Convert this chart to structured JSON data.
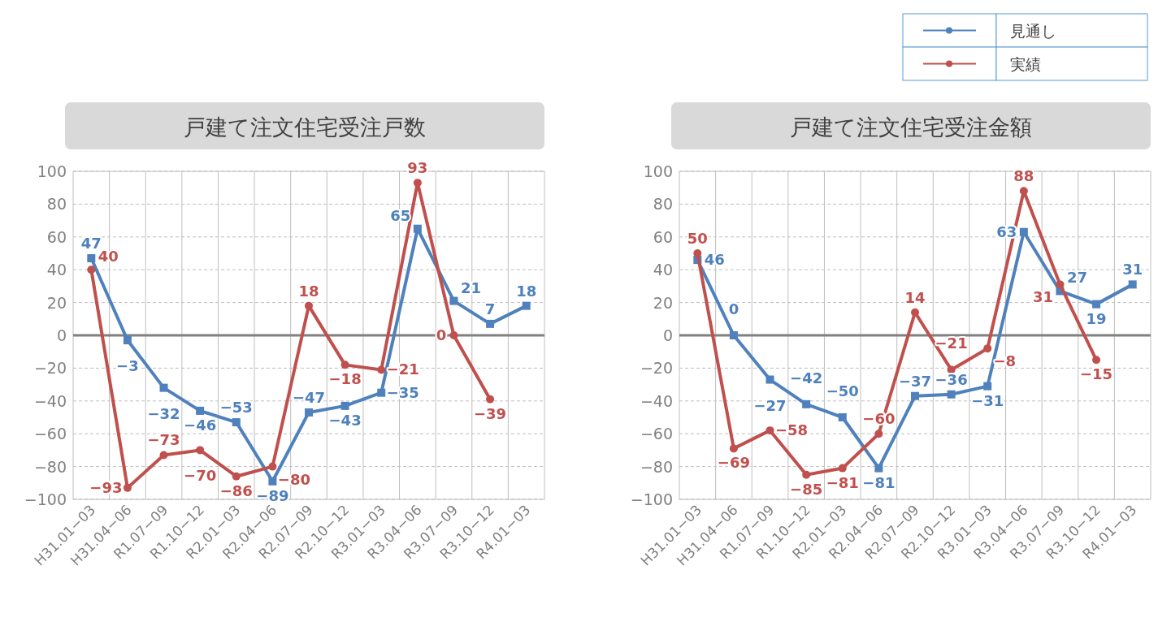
{
  "chart_data": [
    {
      "type": "line",
      "title": "戸建て注文住宅受注戸数",
      "categories": [
        "H31.01−03",
        "H31.04−06",
        "R1.07−09",
        "R1.10−12",
        "R2.01−03",
        "R2.04−06",
        "R2.07−09",
        "R2.10−12",
        "R3.01−03",
        "R3.04−06",
        "R3.07−09",
        "R3.10−12",
        "R4.01−03"
      ],
      "series": [
        {
          "color": "#4f81bd",
          "marker": "square",
          "values": [
            47,
            -3,
            -32,
            -46,
            -53,
            -89,
            -47,
            -43,
            -35,
            65,
            21,
            7,
            18
          ]
        },
        {
          "color": "#c0504d",
          "marker": "circle",
          "values": [
            40,
            -93,
            -73,
            -70,
            -86,
            -80,
            18,
            -18,
            -21,
            93,
            0,
            -39,
            null
          ]
        }
      ],
      "ylim": [
        -100,
        100
      ],
      "yticks": [
        -100,
        -80,
        -60,
        -40,
        -20,
        0,
        20,
        40,
        60,
        80,
        100
      ],
      "grid": true,
      "data_labels": true,
      "ref_lines": [
        {
          "axis": "y",
          "value": 0,
          "color": "#808080"
        }
      ]
    },
    {
      "type": "line",
      "title": "戸建て注文住宅受注金額",
      "categories": [
        "H31.01−03",
        "H31.04−06",
        "R1.07−09",
        "R1.10−12",
        "R2.01−03",
        "R2.04−06",
        "R2.07−09",
        "R2.10−12",
        "R3.01−03",
        "R3.04−06",
        "R3.07−09",
        "R3.10−12",
        "R4.01−03"
      ],
      "series": [
        {
          "name": "見通し",
          "color": "#4f81bd",
          "marker": "square",
          "values": [
            46,
            0,
            -27,
            -42,
            -50,
            -81,
            -37,
            -36,
            -31,
            63,
            27,
            19,
            31
          ]
        },
        {
          "name": "実績",
          "color": "#c0504d",
          "marker": "circle",
          "values": [
            50,
            -69,
            -58,
            -85,
            -81,
            -60,
            14,
            -21,
            -8,
            88,
            31,
            -15,
            null
          ]
        }
      ],
      "ylim": [
        -100,
        100
      ],
      "yticks": [
        -100,
        -80,
        -60,
        -40,
        -20,
        0,
        20,
        40,
        60,
        80,
        100
      ],
      "grid": true,
      "data_labels": true,
      "legend": "top right",
      "ref_lines": [
        {
          "axis": "y",
          "value": 0,
          "color": "#808080"
        }
      ]
    }
  ]
}
